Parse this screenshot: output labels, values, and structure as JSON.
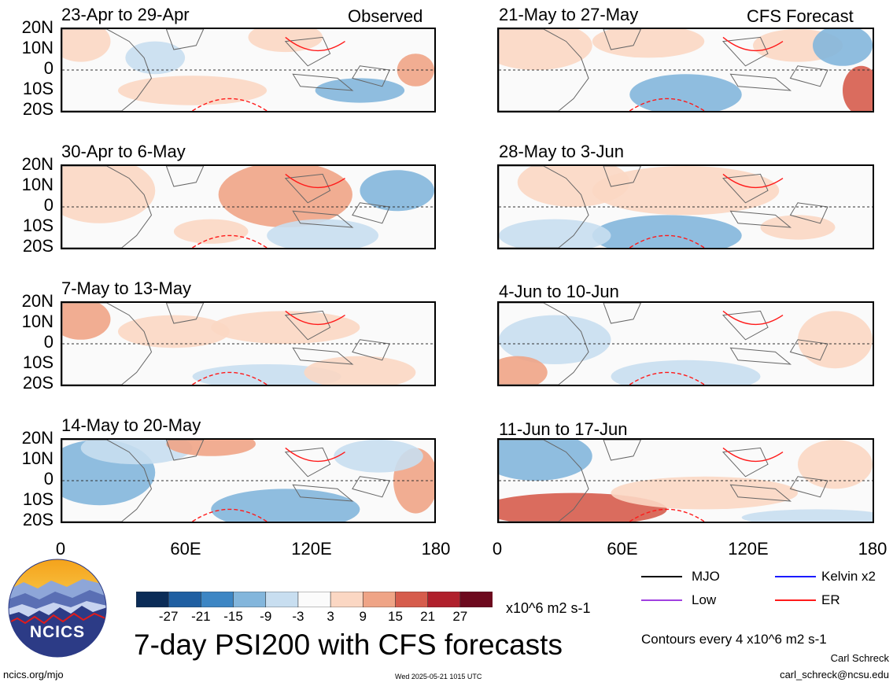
{
  "left_tag": "Observed",
  "right_tag": "CFS Forecast",
  "panels": [
    {
      "title": "23-Apr to 29-Apr"
    },
    {
      "title": "21-May to 27-May"
    },
    {
      "title": "30-Apr to 6-May"
    },
    {
      "title": "28-May to 3-Jun"
    },
    {
      "title": "7-May to 13-May"
    },
    {
      "title": "4-Jun to 10-Jun"
    },
    {
      "title": "14-May to 20-May"
    },
    {
      "title": "11-Jun to 17-Jun"
    }
  ],
  "lat_labels": [
    "20N",
    "10N",
    "0",
    "10S",
    "20S"
  ],
  "lon_labels": [
    "0",
    "60E",
    "120E",
    "180"
  ],
  "colorbar": {
    "labels": [
      "-27",
      "-21",
      "-15",
      "-9",
      "-3",
      "3",
      "9",
      "15",
      "21",
      "27"
    ],
    "colors": [
      "#0b2c57",
      "#1f5fa2",
      "#3d86c4",
      "#83b6dc",
      "#c8def0",
      "#fbfbfb",
      "#fbd7c3",
      "#efa486",
      "#d65c4c",
      "#b0202c",
      "#6d0a1e"
    ],
    "units": "x10^6 m2 s-1"
  },
  "legend": [
    {
      "label": "MJO",
      "color": "#000000"
    },
    {
      "label": "Kelvin x2",
      "color": "#1a1aff"
    },
    {
      "label": "Low",
      "color": "#a040e0"
    },
    {
      "label": "ER",
      "color": "#ff1a1a"
    }
  ],
  "main_title": "7-day PSI200 with CFS forecasts",
  "contour_note": "Contours every 4 x10^6 m2 s-1",
  "author": "Carl Schreck",
  "email": "carl_schreck@ncsu.edu",
  "url": "ncics.org/mjo",
  "timestamp": "Wed 2025-05-21 1015 UTC",
  "logo_text": "NCICS"
}
